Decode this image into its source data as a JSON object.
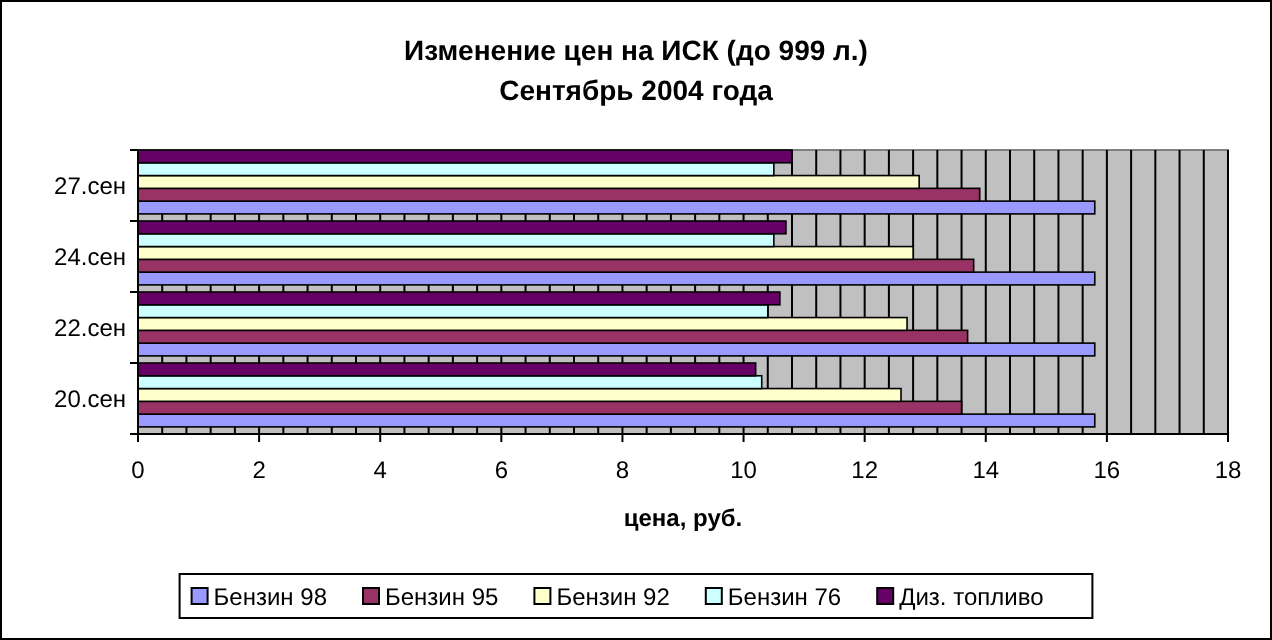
{
  "chart_data": {
    "type": "bar",
    "orientation": "horizontal",
    "title": "Изменение цен на ИСК (до 999 л.)",
    "subtitle": "Сентябрь 2004 года",
    "xlabel": "цена, руб.",
    "categories": [
      "27.сен",
      "24.сен",
      "22.сен",
      "20.сен"
    ],
    "series": [
      {
        "name": "Бензин 98",
        "color": "#9999ff",
        "values": [
          15.8,
          15.8,
          15.8,
          15.8
        ]
      },
      {
        "name": "Бензин 95",
        "color": "#993366",
        "values": [
          13.9,
          13.8,
          13.7,
          13.6
        ]
      },
      {
        "name": "Бензин 92",
        "color": "#ffffcc",
        "values": [
          12.9,
          12.8,
          12.7,
          12.6
        ]
      },
      {
        "name": "Бензин 76",
        "color": "#ccffff",
        "values": [
          10.5,
          10.5,
          10.4,
          10.3
        ]
      },
      {
        "name": "Диз. топливо",
        "color": "#660066",
        "values": [
          10.8,
          10.7,
          10.6,
          10.2
        ]
      }
    ],
    "xlim": [
      0,
      18
    ],
    "xticks": [
      0,
      {
        "value": 0.4,
        "label": null
      },
      {
        "value": 0.8,
        "label": null
      },
      {
        "value": 1.2,
        "label": null
      },
      {
        "value": 1.6,
        "label": null
      },
      2,
      {
        "value": 2.4,
        "label": null
      },
      {
        "value": 2.8,
        "label": null
      },
      {
        "value": 3.2,
        "label": null
      },
      {
        "value": 3.6,
        "label": null
      },
      4,
      {
        "value": 4.4,
        "label": null
      },
      {
        "value": 4.8,
        "label": null
      },
      {
        "value": 5.2,
        "label": null
      },
      {
        "value": 5.6,
        "label": null
      },
      6,
      {
        "value": 6.4,
        "label": null
      },
      {
        "value": 6.8,
        "label": null
      },
      {
        "value": 7.2,
        "label": null
      },
      {
        "value": 7.6,
        "label": null
      },
      8,
      {
        "value": 8.4,
        "label": null
      },
      {
        "value": 8.8,
        "label": null
      },
      {
        "value": 9.2,
        "label": null
      },
      {
        "value": 9.6,
        "label": null
      },
      10,
      {
        "value": 10.4,
        "label": null
      },
      {
        "value": 10.8,
        "label": null
      },
      {
        "value": 11.2,
        "label": null
      },
      {
        "value": 11.6,
        "label": null
      },
      12,
      {
        "value": 12.4,
        "label": null
      },
      {
        "value": 12.8,
        "label": null
      },
      {
        "value": 13.2,
        "label": null
      },
      {
        "value": 13.6,
        "label": null
      },
      14,
      {
        "value": 14.4,
        "label": null
      },
      {
        "value": 14.8,
        "label": null
      },
      {
        "value": 15.2,
        "label": null
      },
      {
        "value": 15.6,
        "label": null
      },
      16,
      {
        "value": 16.4,
        "label": null
      },
      {
        "value": 16.8,
        "label": null
      },
      {
        "value": 17.2,
        "label": null
      },
      {
        "value": 17.6,
        "label": null
      },
      18
    ],
    "grid": "x",
    "legend": "bottom"
  }
}
